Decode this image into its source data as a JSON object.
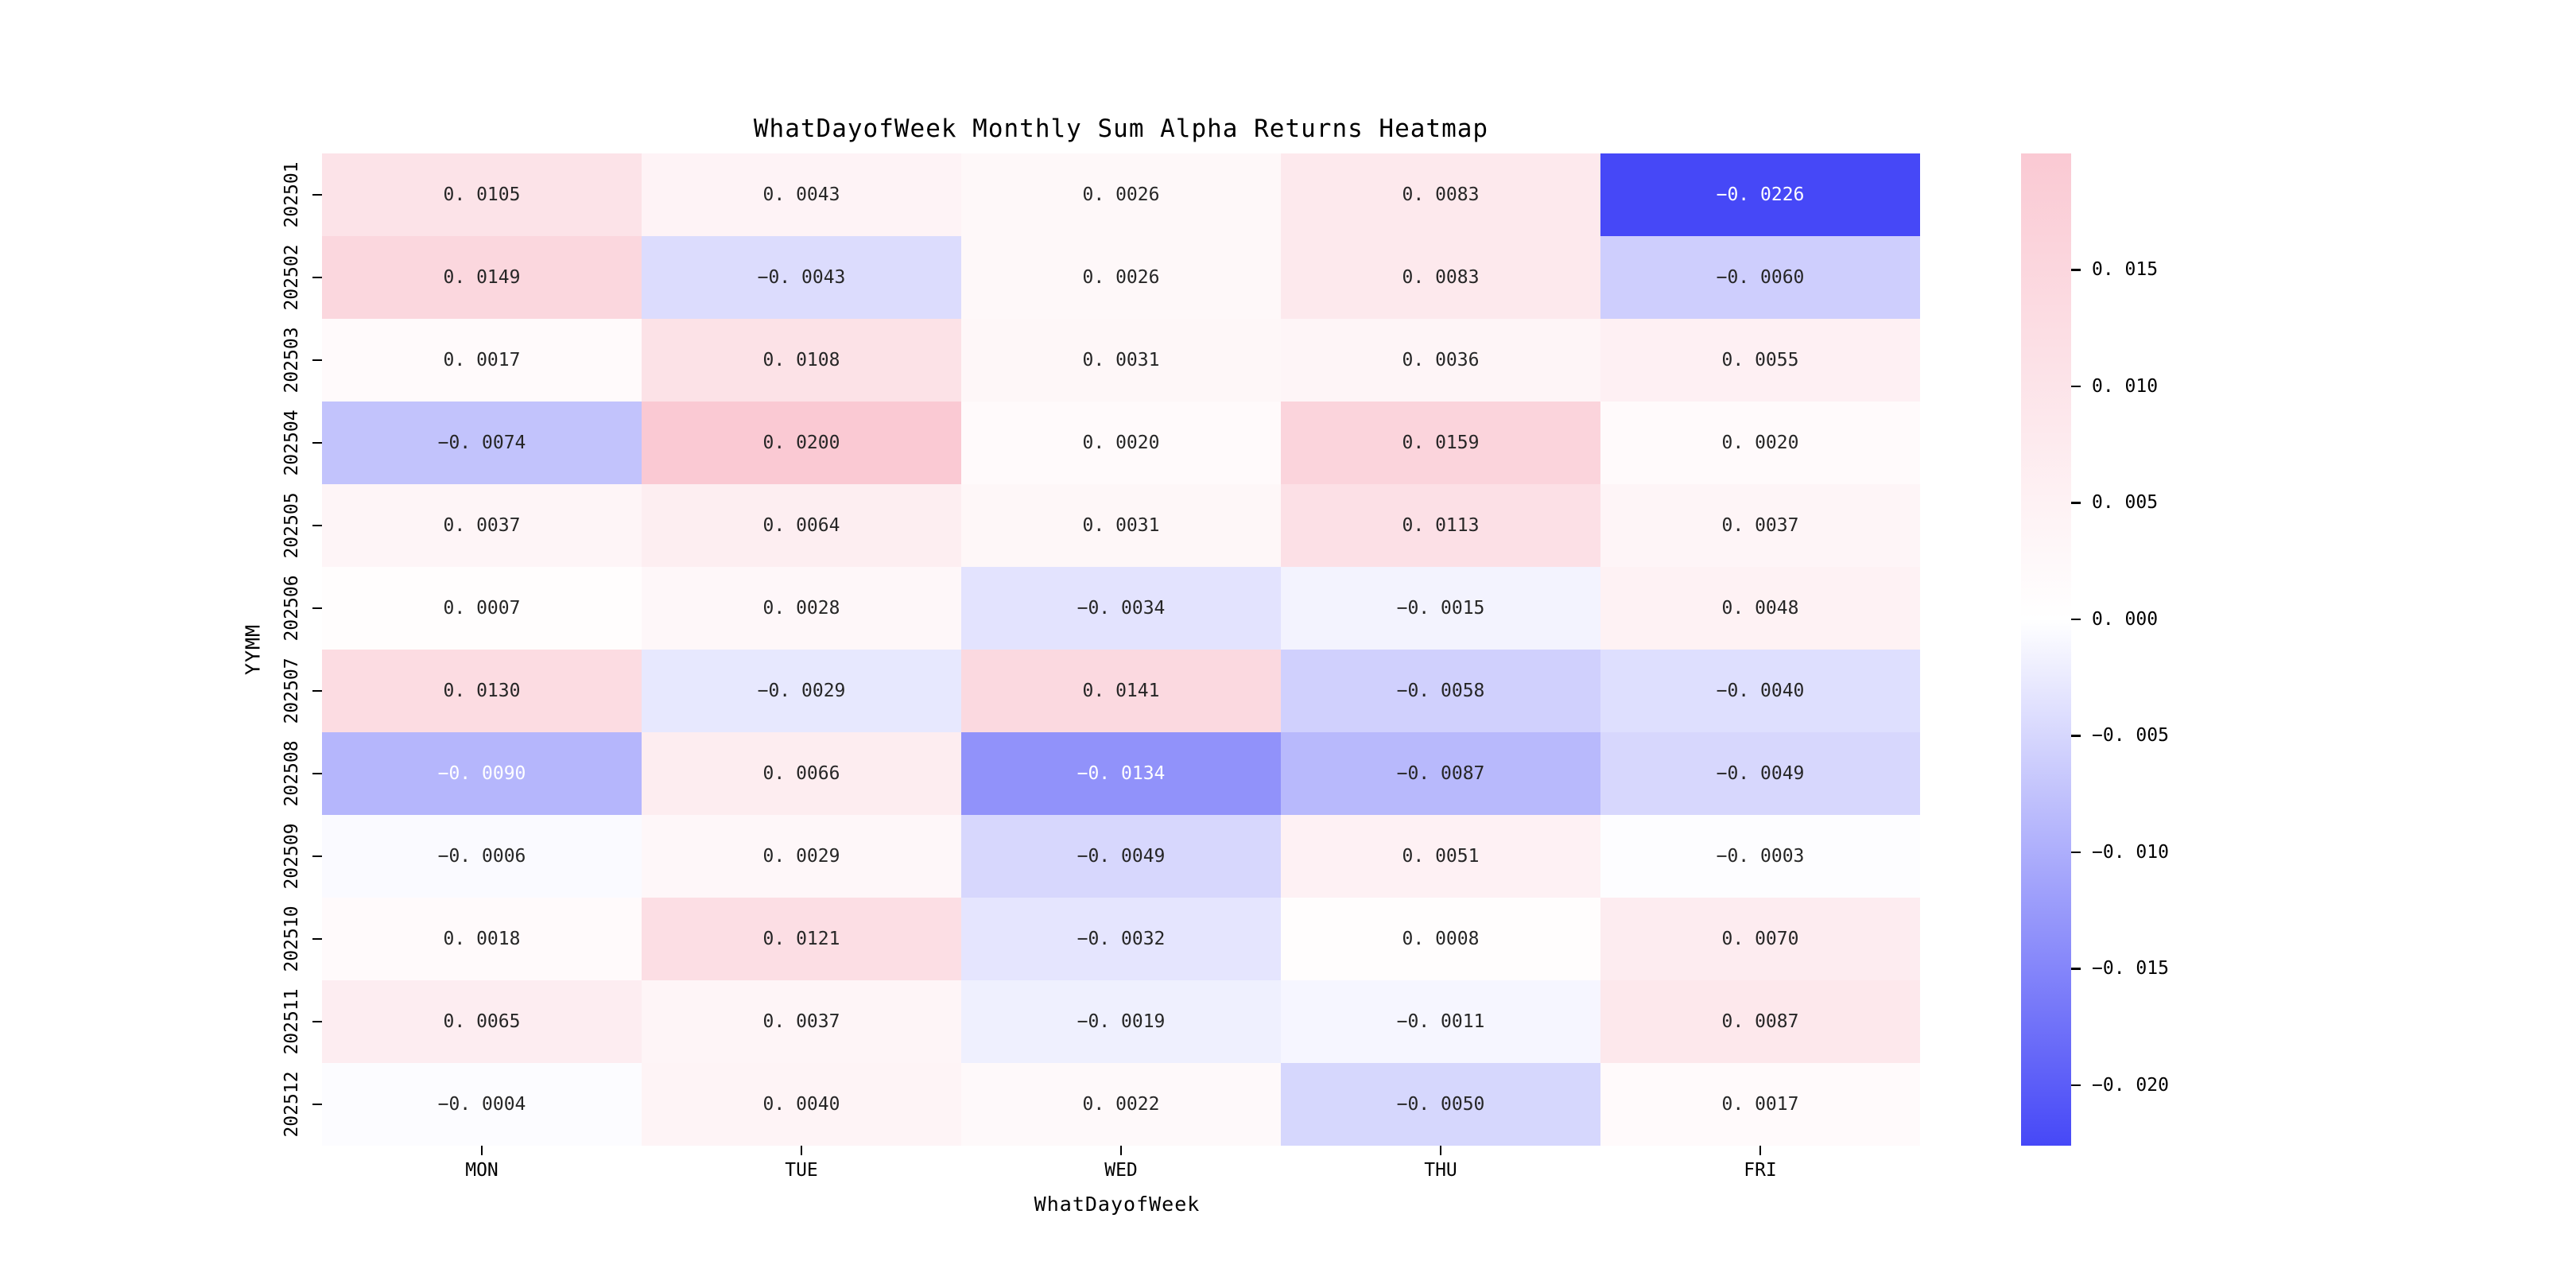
{
  "figure": {
    "background": "#ffffff"
  },
  "chart_data": {
    "type": "heatmap",
    "title": "WhatDayofWeek Monthly Sum Alpha Returns Heatmap",
    "xlabel": "WhatDayofWeek",
    "ylabel": "YYMM",
    "columns": [
      "MON",
      "TUE",
      "WED",
      "THU",
      "FRI"
    ],
    "rows": [
      "202501",
      "202502",
      "202503",
      "202504",
      "202505",
      "202506",
      "202507",
      "202508",
      "202509",
      "202510",
      "202511",
      "202512"
    ],
    "values": [
      [
        0.0105,
        0.0043,
        0.0026,
        0.0083,
        -0.0226
      ],
      [
        0.0149,
        -0.0043,
        0.0026,
        0.0083,
        -0.006
      ],
      [
        0.0017,
        0.0108,
        0.0031,
        0.0036,
        0.0055
      ],
      [
        -0.0074,
        0.02,
        0.002,
        0.0159,
        0.002
      ],
      [
        0.0037,
        0.0064,
        0.0031,
        0.0113,
        0.0037
      ],
      [
        0.0007,
        0.0028,
        -0.0034,
        -0.0015,
        0.0048
      ],
      [
        0.013,
        -0.0029,
        0.0141,
        -0.0058,
        -0.004
      ],
      [
        -0.009,
        0.0066,
        -0.0134,
        -0.0087,
        -0.0049
      ],
      [
        -0.0006,
        0.0029,
        -0.0049,
        0.0051,
        -0.0003
      ],
      [
        0.0018,
        0.0121,
        -0.0032,
        0.0008,
        0.007
      ],
      [
        0.0065,
        0.0037,
        -0.0019,
        -0.0011,
        0.0087
      ],
      [
        -0.0004,
        0.004,
        0.0022,
        -0.005,
        0.0017
      ]
    ],
    "vmin": -0.0226,
    "vmax": 0.02,
    "annot_decimals": 4,
    "colorbar_ticks": [
      0.015,
      0.01,
      0.005,
      0.0,
      -0.005,
      -0.01,
      -0.015,
      -0.02
    ],
    "colorbar_tick_decimals": 3,
    "colors": {
      "positive_max": "#fac9d3",
      "zero": "#ffffff",
      "negative_min": "#4648f7",
      "annot_dark": "#262626",
      "annot_light": "#ffffff"
    },
    "annot_white_text_below": -0.0088,
    "legend_position": "right-colorbar",
    "grid": false
  }
}
